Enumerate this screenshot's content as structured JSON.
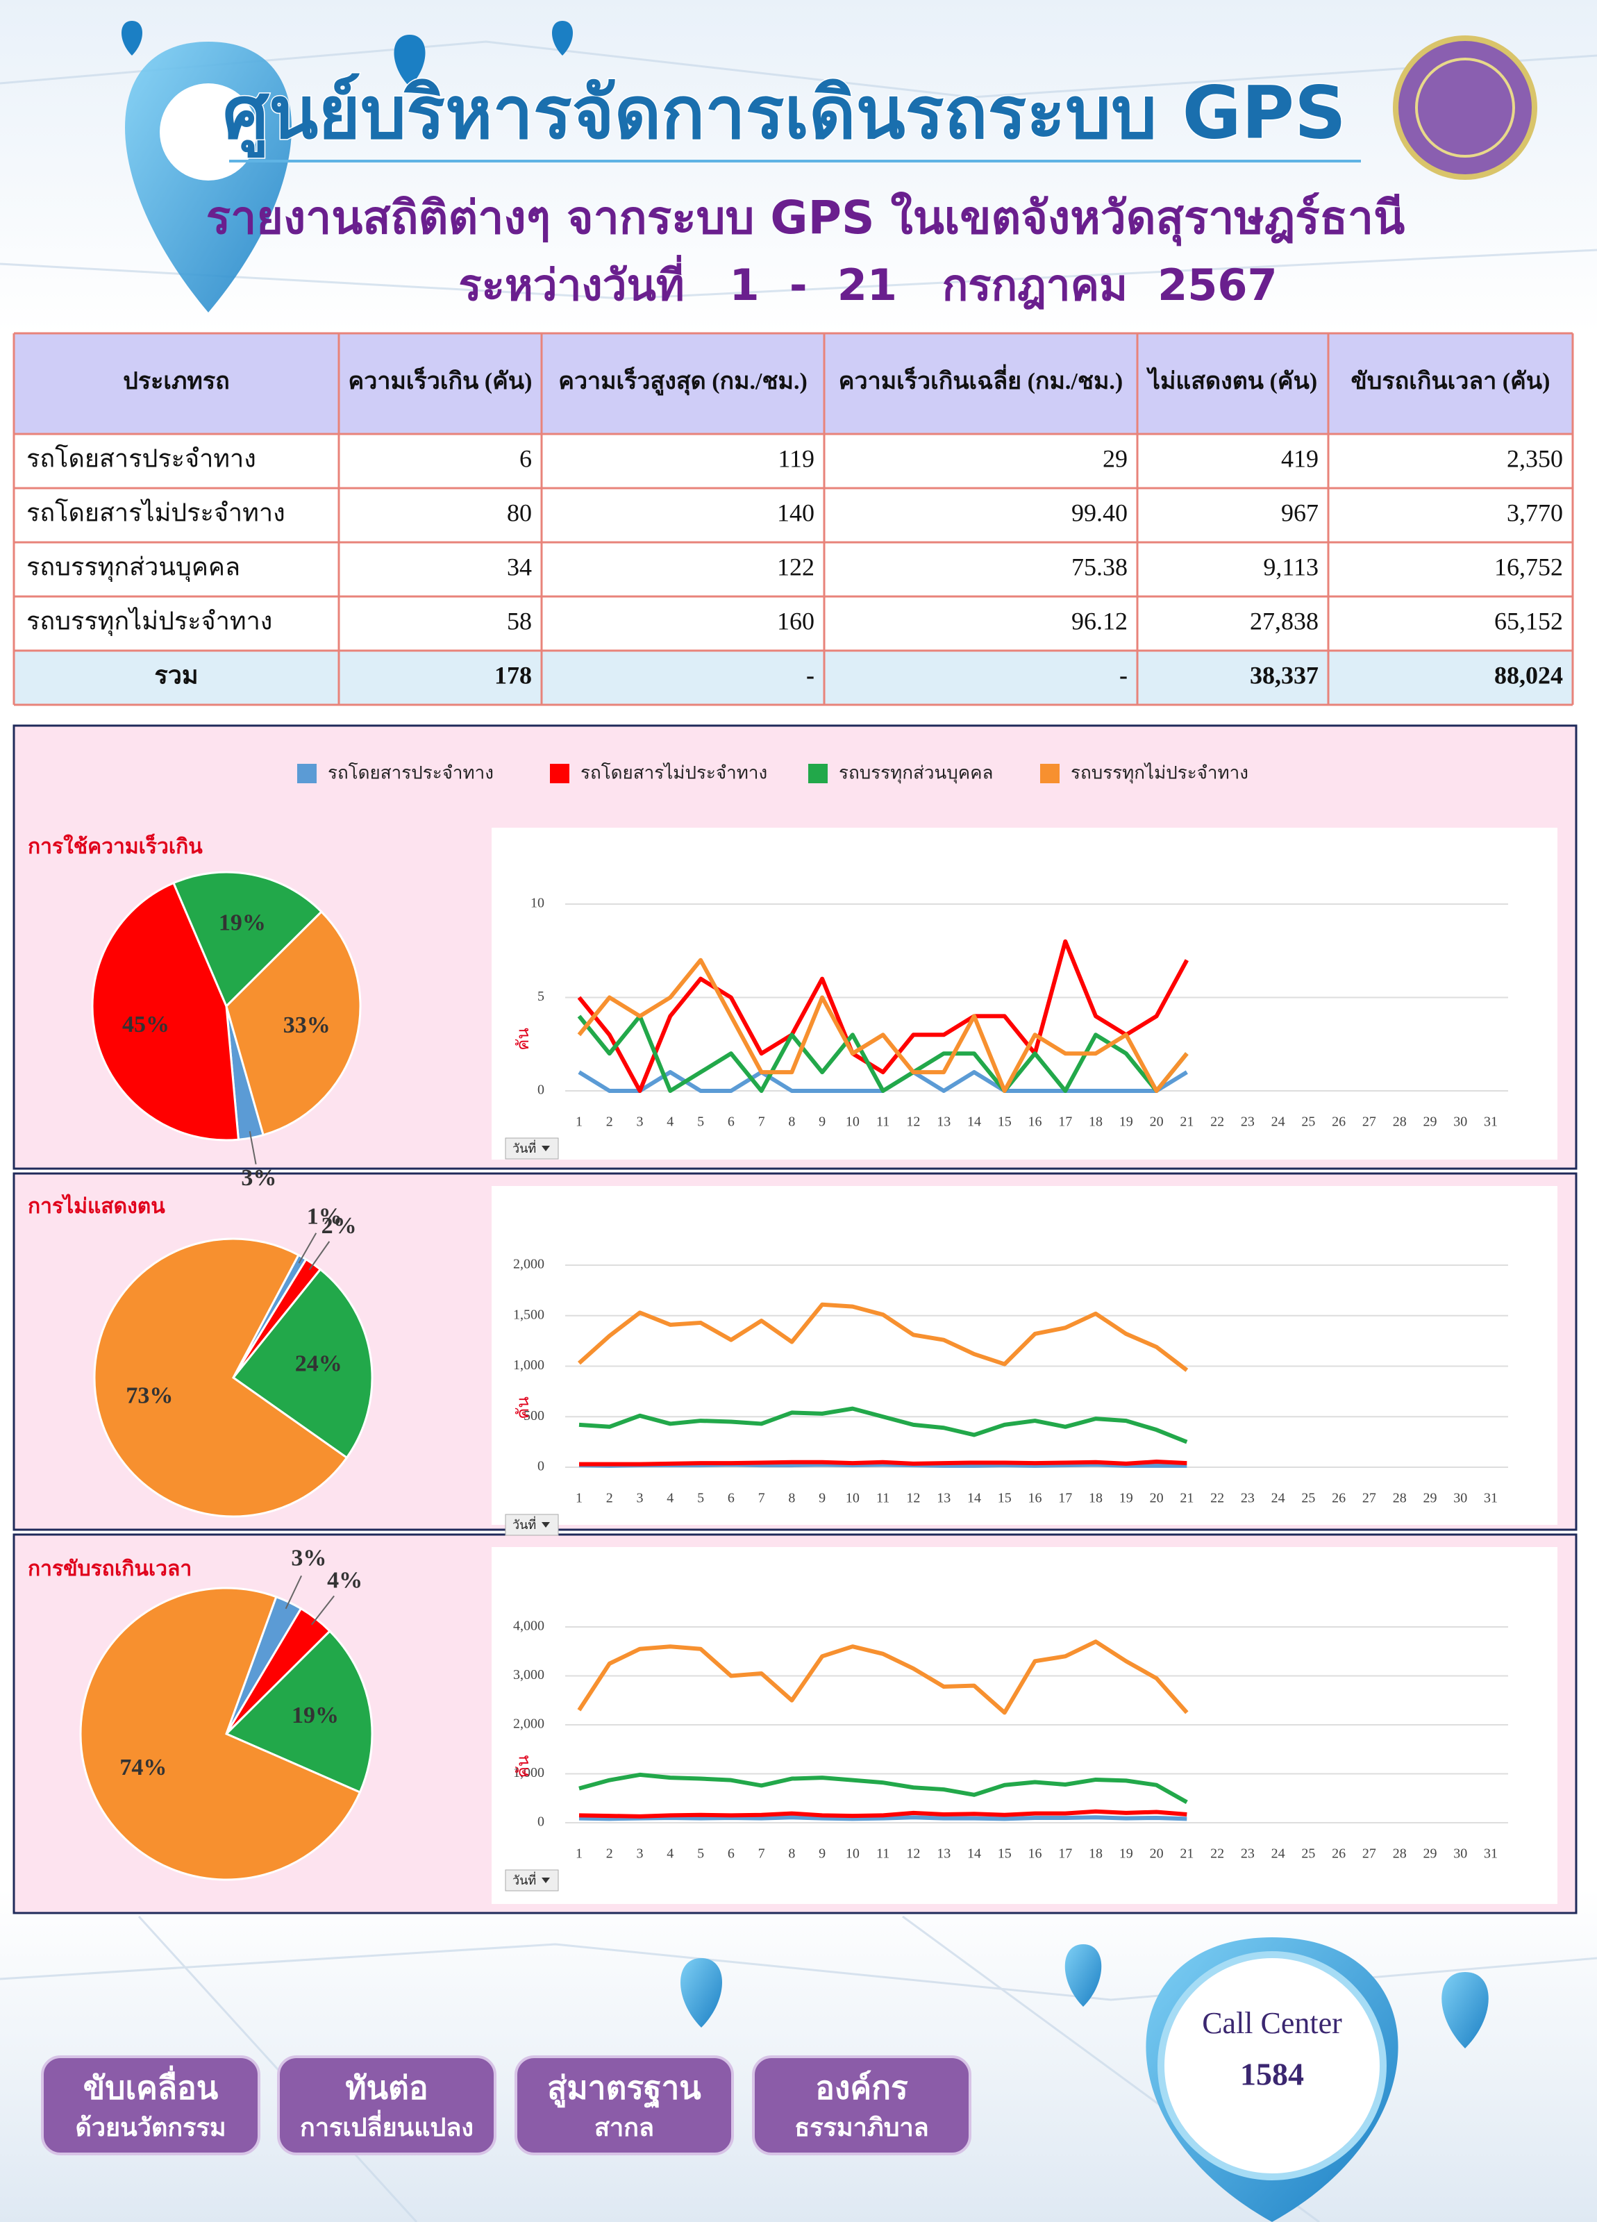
{
  "header": {
    "title": "ศูนย์บริหารจัดการเดินรถระบบ GPS",
    "subtitle": "รายงานสถิติต่างๆ จากระบบ GPS ในเขตจังหวัดสุราษฎร์ธานี",
    "period": "ระหว่างวันที่   1  -  21   กรกฎาคม  2567"
  },
  "table": {
    "columns": [
      "ประเภทรถ",
      "ความเร็วเกิน (คัน)",
      "ความเร็วสูงสุด (กม./ชม.)",
      "ความเร็วเกินเฉลี่ย (กม./ชม.)",
      "ไม่แสดงตน (คัน)",
      "ขับรถเกินเวลา (คัน)"
    ],
    "rows": [
      [
        "รถโดยสารประจำทาง",
        "6",
        "119",
        "29",
        "419",
        "2,350"
      ],
      [
        "รถโดยสารไม่ประจำทาง",
        "80",
        "140",
        "99.40",
        "967",
        "3,770"
      ],
      [
        "รถบรรทุกส่วนบุคคล",
        "34",
        "122",
        "75.38",
        "9,113",
        "16,752"
      ],
      [
        "รถบรรทุกไม่ประจำทาง",
        "58",
        "160",
        "96.12",
        "27,838",
        "65,152"
      ],
      [
        "รวม",
        "178",
        "-",
        "-",
        "38,337",
        "88,024"
      ]
    ]
  },
  "legend": [
    {
      "name": "รถโดยสารประจำทาง",
      "color": "#5b9bd5"
    },
    {
      "name": "รถโดยสารไม่ประจำทาง",
      "color": "#ff0000"
    },
    {
      "name": "รถบรรทุกส่วนบุคคล",
      "color": "#22a84a"
    },
    {
      "name": "รถบรรทุกไม่ประจำทาง",
      "color": "#f7902f"
    }
  ],
  "chart_data": [
    {
      "type": "pie",
      "title": "การใช้ความเร็วเกิน",
      "values": [
        3,
        45,
        19,
        33
      ],
      "value_labels": [
        "3%",
        "45%",
        "19%",
        "33%"
      ]
    },
    {
      "type": "line",
      "ylabel": "คัน",
      "dropdown": "วันที่",
      "ylim": [
        0,
        10
      ],
      "yticks": [
        0,
        5,
        10
      ],
      "categories": [
        "1",
        "2",
        "3",
        "4",
        "5",
        "6",
        "7",
        "8",
        "9",
        "10",
        "11",
        "12",
        "13",
        "14",
        "15",
        "16",
        "17",
        "18",
        "19",
        "20",
        "21",
        "22",
        "23",
        "24",
        "25",
        "26",
        "27",
        "28",
        "29",
        "30",
        "31"
      ],
      "series": [
        {
          "values": [
            1,
            0,
            0,
            1,
            0,
            0,
            1,
            0,
            0,
            0,
            0,
            1,
            0,
            1,
            0,
            0,
            0,
            0,
            0,
            0,
            1,
            null,
            null,
            null,
            null,
            null,
            null,
            null,
            null,
            null,
            null
          ]
        },
        {
          "values": [
            5,
            3,
            0,
            4,
            6,
            5,
            2,
            3,
            6,
            2,
            1,
            3,
            3,
            4,
            4,
            2,
            8,
            4,
            3,
            4,
            7,
            null,
            null,
            null,
            null,
            null,
            null,
            null,
            null,
            null,
            null
          ]
        },
        {
          "values": [
            4,
            2,
            4,
            0,
            1,
            2,
            0,
            3,
            1,
            3,
            0,
            1,
            2,
            2,
            0,
            2,
            0,
            3,
            2,
            0,
            2,
            null,
            null,
            null,
            null,
            null,
            null,
            null,
            null,
            null,
            null
          ]
        },
        {
          "values": [
            3,
            5,
            4,
            5,
            7,
            4,
            1,
            1,
            5,
            2,
            3,
            1,
            1,
            4,
            0,
            3,
            2,
            2,
            3,
            0,
            2,
            null,
            null,
            null,
            null,
            null,
            null,
            null,
            null,
            null,
            null
          ]
        }
      ]
    },
    {
      "type": "pie",
      "title": "การไม่แสดงตน",
      "values": [
        1,
        2,
        24,
        73
      ],
      "value_labels": [
        "1%",
        "2%",
        "24%",
        "73%"
      ]
    },
    {
      "type": "line",
      "ylabel": "คัน",
      "dropdown": "วันที่",
      "ylim": [
        0,
        2000
      ],
      "yticks": [
        0,
        500,
        {
          "value": 1000,
          "label": "1,000"
        },
        {
          "value": 1500,
          "label": "1,500"
        },
        {
          "value": 2000,
          "label": "2,000"
        }
      ],
      "categories": [
        "1",
        "2",
        "3",
        "4",
        "5",
        "6",
        "7",
        "8",
        "9",
        "10",
        "11",
        "12",
        "13",
        "14",
        "15",
        "16",
        "17",
        "18",
        "19",
        "20",
        "21",
        "22",
        "23",
        "24",
        "25",
        "26",
        "27",
        "28",
        "29",
        "30",
        "31"
      ],
      "series": [
        {
          "values": [
            20,
            15,
            20,
            20,
            20,
            25,
            20,
            20,
            25,
            20,
            25,
            20,
            15,
            15,
            20,
            15,
            20,
            25,
            15,
            15,
            15,
            null,
            null,
            null,
            null,
            null,
            null,
            null,
            null,
            null,
            null
          ]
        },
        {
          "values": [
            30,
            30,
            30,
            35,
            40,
            40,
            45,
            50,
            50,
            40,
            50,
            35,
            40,
            45,
            45,
            40,
            45,
            50,
            35,
            55,
            40,
            null,
            null,
            null,
            null,
            null,
            null,
            null,
            null,
            null,
            null
          ]
        },
        {
          "values": [
            420,
            400,
            510,
            430,
            460,
            450,
            430,
            540,
            530,
            580,
            500,
            420,
            390,
            320,
            420,
            460,
            400,
            480,
            460,
            370,
            250,
            null,
            null,
            null,
            null,
            null,
            null,
            null,
            null,
            null,
            null
          ]
        },
        {
          "values": [
            1030,
            1300,
            1530,
            1410,
            1430,
            1260,
            1450,
            1240,
            1610,
            1590,
            1510,
            1310,
            1260,
            1120,
            1020,
            1320,
            1380,
            1520,
            1320,
            1190,
            960,
            null,
            null,
            null,
            null,
            null,
            null,
            null,
            null,
            null,
            null
          ]
        }
      ]
    },
    {
      "type": "pie",
      "title": "การขับรถเกินเวลา",
      "values": [
        3,
        4,
        19,
        74
      ],
      "value_labels": [
        "3%",
        "4%",
        "19%",
        "74%"
      ]
    },
    {
      "type": "line",
      "ylabel": "คัน",
      "dropdown": "วันที่",
      "ylim": [
        0,
        4000
      ],
      "yticks": [
        0,
        {
          "value": 1000,
          "label": "1,000"
        },
        {
          "value": 2000,
          "label": "2,000"
        },
        {
          "value": 3000,
          "label": "3,000"
        },
        {
          "value": 4000,
          "label": "4,000"
        }
      ],
      "categories": [
        "1",
        "2",
        "3",
        "4",
        "5",
        "6",
        "7",
        "8",
        "9",
        "10",
        "11",
        "12",
        "13",
        "14",
        "15",
        "16",
        "17",
        "18",
        "19",
        "20",
        "21",
        "22",
        "23",
        "24",
        "25",
        "26",
        "27",
        "28",
        "29",
        "30",
        "31"
      ],
      "series": [
        {
          "values": [
            90,
            80,
            90,
            100,
            90,
            100,
            90,
            110,
            90,
            80,
            90,
            110,
            90,
            90,
            80,
            100,
            100,
            110,
            90,
            100,
            80,
            null,
            null,
            null,
            null,
            null,
            null,
            null,
            null,
            null,
            null
          ]
        },
        {
          "values": [
            150,
            140,
            130,
            150,
            160,
            150,
            160,
            190,
            150,
            140,
            150,
            200,
            170,
            180,
            160,
            190,
            190,
            230,
            200,
            220,
            170,
            null,
            null,
            null,
            null,
            null,
            null,
            null,
            null,
            null,
            null
          ]
        },
        {
          "values": [
            700,
            870,
            980,
            920,
            900,
            870,
            760,
            900,
            920,
            870,
            820,
            720,
            680,
            570,
            770,
            830,
            780,
            880,
            860,
            770,
            420,
            null,
            null,
            null,
            null,
            null,
            null,
            null,
            null,
            null,
            null
          ]
        },
        {
          "values": [
            2300,
            3250,
            3550,
            3600,
            3550,
            3000,
            3050,
            2500,
            3400,
            3600,
            3450,
            3150,
            2780,
            2800,
            2250,
            3300,
            3400,
            3700,
            3300,
            2950,
            2250,
            null,
            null,
            null,
            null,
            null,
            null,
            null,
            null,
            null,
            null
          ]
        }
      ]
    }
  ],
  "footer": {
    "badges": [
      [
        "ขับเคลื่อน",
        "ด้วยนวัตกรรม"
      ],
      [
        "ทันต่อ",
        "การเปลี่ยนแปลง"
      ],
      [
        "สู่มาตรฐาน",
        "สากล"
      ],
      [
        "องค์กร",
        "ธรรมาภิบาล"
      ]
    ],
    "call_center": {
      "label": "Call Center",
      "number": "1584"
    }
  }
}
